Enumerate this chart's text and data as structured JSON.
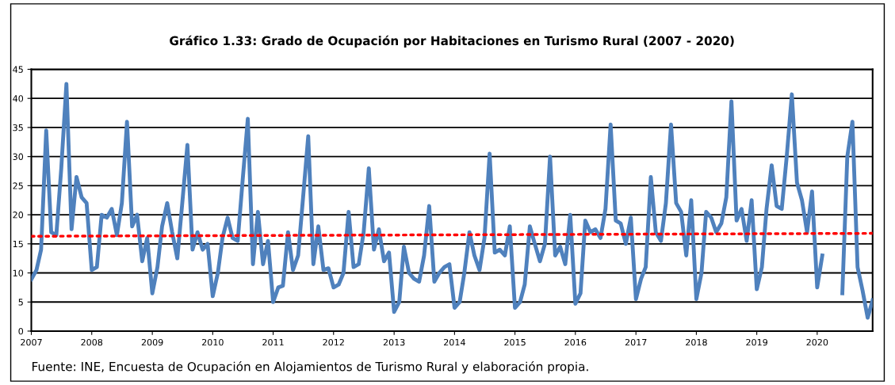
{
  "chart_data": {
    "type": "line",
    "title": "Gráfico 1.33: Grado de Ocupación por Habitaciones en Turismo Rural (2007 - 2020)",
    "x": [
      "2007-01",
      "2007-02",
      "2007-03",
      "2007-04",
      "2007-05",
      "2007-06",
      "2007-07",
      "2007-08",
      "2007-09",
      "2007-10",
      "2007-11",
      "2007-12",
      "2008-01",
      "2008-02",
      "2008-03",
      "2008-04",
      "2008-05",
      "2008-06",
      "2008-07",
      "2008-08",
      "2008-09",
      "2008-10",
      "2008-11",
      "2008-12",
      "2009-01",
      "2009-02",
      "2009-03",
      "2009-04",
      "2009-05",
      "2009-06",
      "2009-07",
      "2009-08",
      "2009-09",
      "2009-10",
      "2009-11",
      "2009-12",
      "2010-01",
      "2010-02",
      "2010-03",
      "2010-04",
      "2010-05",
      "2010-06",
      "2010-07",
      "2010-08",
      "2010-09",
      "2010-10",
      "2010-11",
      "2010-12",
      "2011-01",
      "2011-02",
      "2011-03",
      "2011-04",
      "2011-05",
      "2011-06",
      "2011-07",
      "2011-08",
      "2011-09",
      "2011-10",
      "2011-11",
      "2011-12",
      "2012-01",
      "2012-02",
      "2012-03",
      "2012-04",
      "2012-05",
      "2012-06",
      "2012-07",
      "2012-08",
      "2012-09",
      "2012-10",
      "2012-11",
      "2012-12",
      "2013-01",
      "2013-02",
      "2013-03",
      "2013-04",
      "2013-05",
      "2013-06",
      "2013-07",
      "2013-08",
      "2013-09",
      "2013-10",
      "2013-11",
      "2013-12",
      "2014-01",
      "2014-02",
      "2014-03",
      "2014-04",
      "2014-05",
      "2014-06",
      "2014-07",
      "2014-08",
      "2014-09",
      "2014-10",
      "2014-11",
      "2014-12",
      "2015-01",
      "2015-02",
      "2015-03",
      "2015-04",
      "2015-05",
      "2015-06",
      "2015-07",
      "2015-08",
      "2015-09",
      "2015-10",
      "2015-11",
      "2015-12",
      "2016-01",
      "2016-02",
      "2016-03",
      "2016-04",
      "2016-05",
      "2016-06",
      "2016-07",
      "2016-08",
      "2016-09",
      "2016-10",
      "2016-11",
      "2016-12",
      "2017-01",
      "2017-02",
      "2017-03",
      "2017-04",
      "2017-05",
      "2017-06",
      "2017-07",
      "2017-08",
      "2017-09",
      "2017-10",
      "2017-11",
      "2017-12",
      "2018-01",
      "2018-02",
      "2018-03",
      "2018-04",
      "2018-05",
      "2018-06",
      "2018-07",
      "2018-08",
      "2018-09",
      "2018-10",
      "2018-11",
      "2018-12",
      "2019-01",
      "2019-02",
      "2019-03",
      "2019-04",
      "2019-05",
      "2019-06",
      "2019-07",
      "2019-08",
      "2019-09",
      "2019-10",
      "2019-11",
      "2019-12",
      "2020-01",
      "2020-02",
      "2020-03",
      "2020-04",
      "2020-05",
      "2020-06",
      "2020-07",
      "2020-08",
      "2020-09",
      "2020-10",
      "2020-11",
      "2020-12"
    ],
    "series": [
      {
        "color": "#4f81bd",
        "values": [
          8.9,
          10.5,
          14,
          34.5,
          17,
          16.5,
          28,
          42.5,
          17.5,
          26.5,
          23,
          22,
          10.5,
          11,
          20,
          19.5,
          21,
          16.5,
          22,
          36,
          18,
          20,
          12,
          16,
          6.5,
          11,
          18,
          22,
          17,
          12.5,
          22,
          32,
          14,
          17,
          14,
          15,
          6,
          10,
          16,
          19.5,
          16,
          15.5,
          26,
          36.5,
          11.5,
          20.5,
          11.5,
          15.5,
          5,
          7.5,
          7.8,
          17,
          10.5,
          13,
          23,
          33.5,
          11.5,
          18,
          10.5,
          10.8,
          7.5,
          8,
          10,
          20.5,
          11,
          11.5,
          17,
          28,
          14,
          17.5,
          12,
          13.5,
          3.3,
          5,
          14.5,
          10,
          9,
          8.5,
          13,
          21.5,
          8.5,
          10,
          11,
          11.5,
          4,
          5,
          10,
          17,
          13,
          10.5,
          16,
          30.5,
          13.5,
          14,
          13,
          18,
          4,
          5,
          8,
          18,
          15,
          12,
          15,
          30,
          13,
          14.5,
          11.5,
          20,
          4.7,
          6.5,
          19,
          17,
          17.5,
          16,
          21,
          35.5,
          19,
          18.5,
          15,
          19.5,
          5.5,
          9,
          11,
          26.5,
          17,
          15.5,
          22,
          35.5,
          22,
          20.5,
          13,
          22.5,
          5.5,
          10,
          20.5,
          19.5,
          17,
          18.5,
          23,
          39.5,
          19,
          21,
          15.5,
          22.5,
          7.2,
          11,
          21,
          28.5,
          21.5,
          21,
          30,
          40.7,
          25.5,
          22.5,
          17,
          24,
          7.5,
          13,
          null,
          null,
          null,
          6.5,
          30,
          36,
          11,
          7,
          2.3,
          5.3
        ]
      },
      {
        "type": "line",
        "color": "#ff0000",
        "line_style": "dotted",
        "x": [
          "2007-01",
          "2020-12"
        ],
        "values": [
          16.3,
          16.8
        ]
      }
    ],
    "ylim": [
      0,
      45
    ],
    "yticks": [
      0,
      5,
      10,
      15,
      20,
      25,
      30,
      35,
      40,
      45
    ],
    "xlim": [
      "2007-01",
      "2020-12"
    ],
    "xticks": [
      {
        "value": "2007",
        "label": "2007"
      },
      {
        "value": "2008",
        "label": "2008"
      },
      {
        "value": "2009",
        "label": "2009"
      },
      {
        "value": "2010",
        "label": "2010"
      },
      {
        "value": "2011",
        "label": "2011"
      },
      {
        "value": "2012",
        "label": "2012"
      },
      {
        "value": "2013",
        "label": "2013"
      },
      {
        "value": "2014",
        "label": "2014"
      },
      {
        "value": "2015",
        "label": "2015"
      },
      {
        "value": "2016",
        "label": "2016"
      },
      {
        "value": "2017",
        "label": "2017"
      },
      {
        "value": "2018",
        "label": "2018"
      },
      {
        "value": "2019",
        "label": "2019"
      },
      {
        "value": "2020",
        "label": "2020"
      }
    ],
    "grid": "y",
    "annotations": [
      "Fuente: INE, Encuesta de Ocupación en Alojamientos de Turismo Rural y elaboración propia."
    ]
  }
}
